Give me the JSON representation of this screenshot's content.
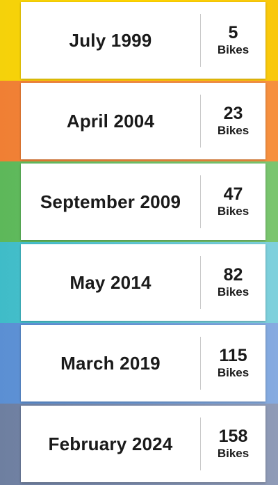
{
  "milestones": [
    {
      "date": "July 1999",
      "count": "5",
      "unit": "Bikes",
      "colors": [
        "#f5d20a",
        "#ffd400",
        "#f9c80e"
      ]
    },
    {
      "date": "April 2004",
      "count": "23",
      "unit": "Bikes",
      "colors": [
        "#f07f34",
        "#f58a3e",
        "#f6903f"
      ]
    },
    {
      "date": "September 2009",
      "count": "47",
      "unit": "Bikes",
      "colors": [
        "#5db85a",
        "#6cc067",
        "#7ac56f"
      ]
    },
    {
      "date": "May 2014",
      "count": "82",
      "unit": "Bikes",
      "colors": [
        "#3fbcc8",
        "#5fc7d3",
        "#7fd0dc"
      ]
    },
    {
      "date": "March 2019",
      "count": "115",
      "unit": "Bikes",
      "colors": [
        "#5b8fd3",
        "#6a9bd9",
        "#86abe0"
      ]
    },
    {
      "date": "February 2024",
      "count": "158",
      "unit": "Bikes",
      "colors": [
        "#6e7fa0",
        "#7c8cae",
        "#8f9bb7"
      ]
    }
  ]
}
